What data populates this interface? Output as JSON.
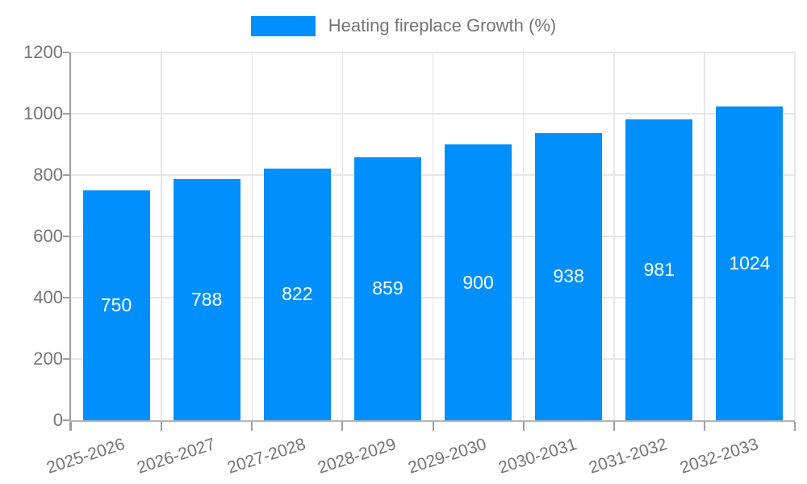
{
  "legend": {
    "label": "Heating fireplace Growth (%)",
    "swatch_color": "#008FFB"
  },
  "chart_data": {
    "type": "bar",
    "title": "Heating fireplace Growth (%)",
    "categories": [
      "2025-2026",
      "2026-2027",
      "2027-2028",
      "2028-2029",
      "2029-2030",
      "2030-2031",
      "2031-2032",
      "2032-2033"
    ],
    "values": [
      750,
      788,
      822,
      859,
      900,
      938,
      981,
      1024
    ],
    "xlabel": "",
    "ylabel": "",
    "ylim": [
      0,
      1200
    ],
    "yticks": [
      0,
      200,
      400,
      600,
      800,
      1000,
      1200
    ],
    "grid": true,
    "legend_position": "top-center",
    "bar_label_position": "center-inside",
    "bar_color": "#008FFB",
    "bar_label_color": "#ffffff"
  },
  "colors": {
    "bar": "#008FFB",
    "axis_line": "#9e9e9e",
    "x_axis_line": "#b3b3b3",
    "gridline": "#e6e6e6",
    "axis_text": "#757575",
    "legend_text": "#757575",
    "background": "#ffffff"
  }
}
